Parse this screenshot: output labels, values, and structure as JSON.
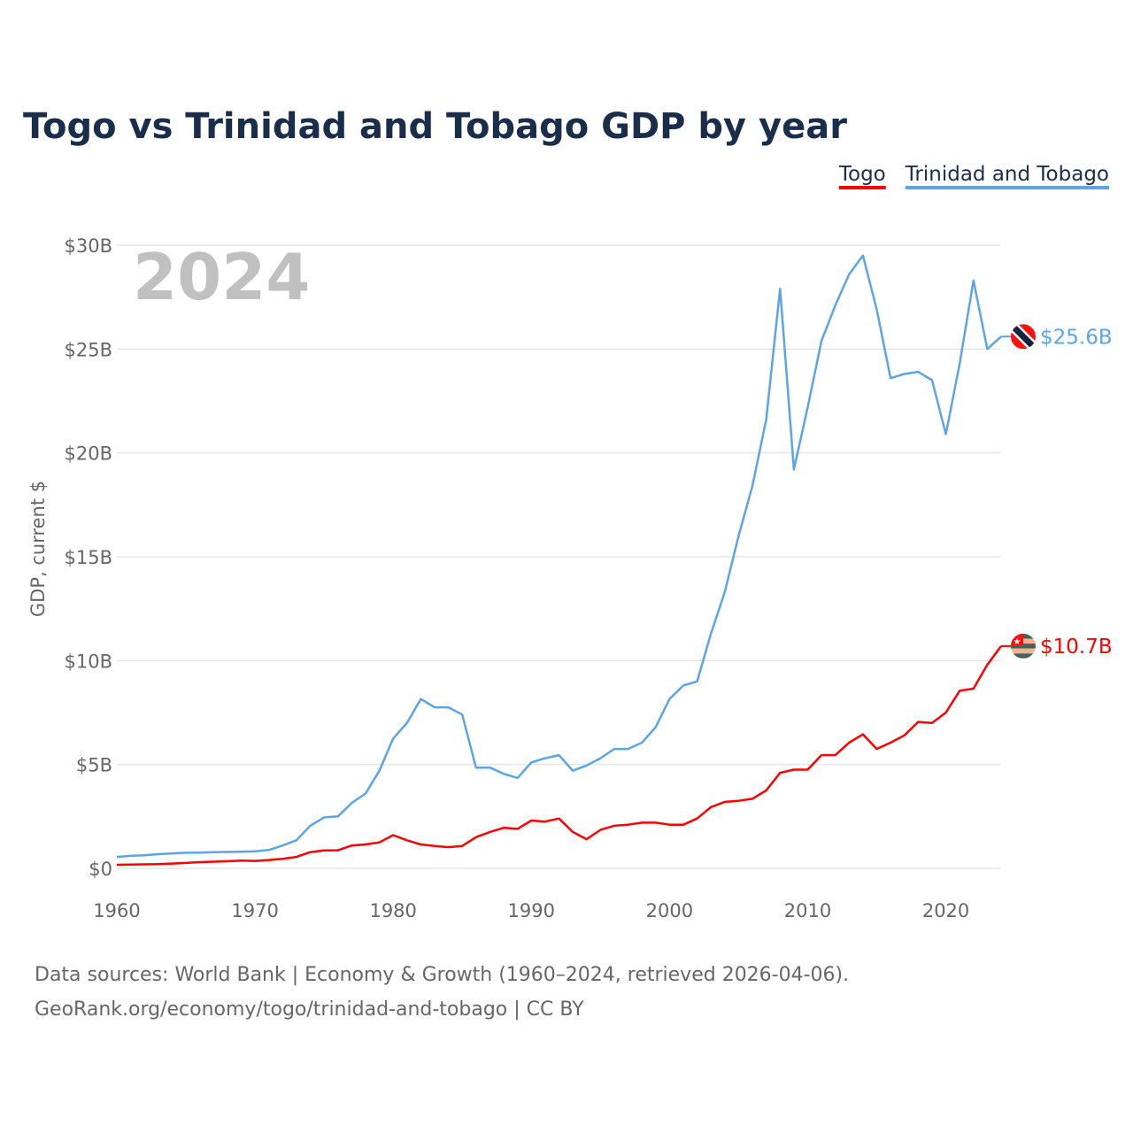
{
  "chart_data": {
    "type": "line",
    "title": "Togo vs Trinidad and Tobago GDP by year",
    "xlabel": "",
    "ylabel": "GDP, current $",
    "year_label": "2024",
    "xlim": [
      1960,
      2024
    ],
    "ylim": [
      0,
      30
    ],
    "x_ticks": [
      1960,
      1970,
      1980,
      1990,
      2000,
      2010,
      2020
    ],
    "y_ticks": [
      0,
      5,
      10,
      15,
      20,
      25,
      30
    ],
    "y_tick_labels": [
      "$0",
      "$5B",
      "$10B",
      "$15B",
      "$20B",
      "$25B",
      "$30B"
    ],
    "grid": true,
    "legend_position": "top-right",
    "x": [
      1960,
      1961,
      1962,
      1963,
      1964,
      1965,
      1966,
      1967,
      1968,
      1969,
      1970,
      1971,
      1972,
      1973,
      1974,
      1975,
      1976,
      1977,
      1978,
      1979,
      1980,
      1981,
      1982,
      1983,
      1984,
      1985,
      1986,
      1987,
      1988,
      1989,
      1990,
      1991,
      1992,
      1993,
      1994,
      1995,
      1996,
      1997,
      1998,
      1999,
      2000,
      2001,
      2002,
      2003,
      2004,
      2005,
      2006,
      2007,
      2008,
      2009,
      2010,
      2011,
      2012,
      2013,
      2014,
      2015,
      2016,
      2017,
      2018,
      2019,
      2020,
      2021,
      2022,
      2023,
      2024
    ],
    "series": [
      {
        "name": "Togo",
        "color": "#ff0000",
        "end_label": "$10.7B",
        "values": [
          0.17,
          0.18,
          0.19,
          0.2,
          0.23,
          0.26,
          0.3,
          0.32,
          0.34,
          0.37,
          0.36,
          0.4,
          0.46,
          0.55,
          0.78,
          0.86,
          0.87,
          1.1,
          1.15,
          1.25,
          1.6,
          1.35,
          1.15,
          1.08,
          1.02,
          1.08,
          1.5,
          1.75,
          1.95,
          1.9,
          2.3,
          2.25,
          2.4,
          1.75,
          1.4,
          1.85,
          2.05,
          2.1,
          2.2,
          2.2,
          2.1,
          2.1,
          2.4,
          2.95,
          3.2,
          3.25,
          3.35,
          3.75,
          4.6,
          4.75,
          4.75,
          5.45,
          5.45,
          6.05,
          6.45,
          5.75,
          6.05,
          6.4,
          7.05,
          7.0,
          7.5,
          8.55,
          8.65,
          9.8,
          10.7
        ]
      },
      {
        "name": "Trinidad and Tobago",
        "color": "#5ca4e8",
        "end_label": "$25.6B",
        "values": [
          0.55,
          0.6,
          0.63,
          0.68,
          0.72,
          0.75,
          0.76,
          0.78,
          0.79,
          0.8,
          0.82,
          0.88,
          1.1,
          1.35,
          2.05,
          2.45,
          2.5,
          3.15,
          3.6,
          4.7,
          6.25,
          7.0,
          8.15,
          7.75,
          7.75,
          7.4,
          4.85,
          4.85,
          4.55,
          4.35,
          5.1,
          5.3,
          5.45,
          4.7,
          4.95,
          5.3,
          5.75,
          5.75,
          6.05,
          6.8,
          8.15,
          8.8,
          9.0,
          11.3,
          13.3,
          16.0,
          18.4,
          21.6,
          27.9,
          19.2,
          22.2,
          25.4,
          27.1,
          28.6,
          29.5,
          26.9,
          23.6,
          23.8,
          23.9,
          23.5,
          20.9,
          24.3,
          28.3,
          25.0,
          25.6
        ]
      }
    ]
  },
  "footer": {
    "line1": "Data sources: World Bank | Economy & Growth (1960–2024, retrieved 2026-04-06).",
    "line2": "GeoRank.org/economy/togo/trinidad-and-tobago | CC BY"
  }
}
